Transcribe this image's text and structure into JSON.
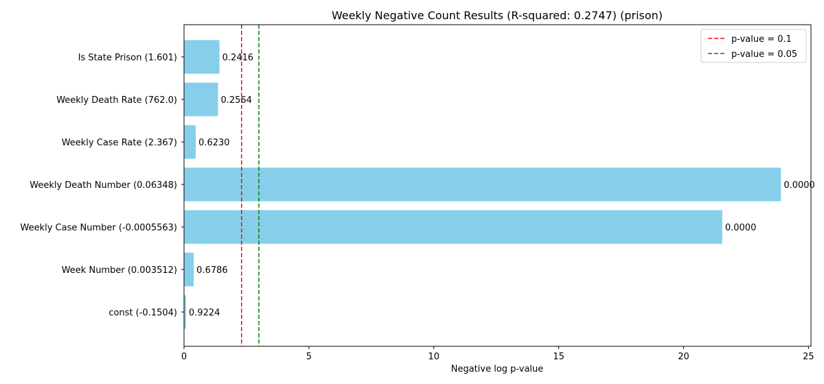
{
  "chart_data": {
    "type": "bar",
    "orientation": "horizontal",
    "title": "Weekly Negative Count Results (R-squared: 0.2747) (prison)",
    "xlabel": "Negative log p-value",
    "ylabel": "",
    "xlim": [
      0,
      25.1
    ],
    "xticks": [
      0,
      5,
      10,
      15,
      20,
      25
    ],
    "grid": false,
    "legend_position": "top-right",
    "bar_color": "#87ceeb",
    "categories": [
      "Is State Prison (1.601)",
      "Weekly Death Rate (762.0)",
      "Weekly Case Rate (2.367)",
      "Weekly Death Number (0.06348)",
      "Weekly Case Number (-0.0005563)",
      "Week Number (0.003512)",
      "const (-0.1504)"
    ],
    "values": [
      1.42,
      1.36,
      0.47,
      23.9,
      21.55,
      0.39,
      0.08
    ],
    "bar_labels": [
      "0.2416",
      "0.2564",
      "0.6230",
      "0.0000",
      "0.0000",
      "0.6786",
      "0.9224"
    ],
    "reference_lines": [
      {
        "label": "p-value = 0.1",
        "x": 2.302585,
        "color": "#ff0000",
        "style": "dashed"
      },
      {
        "label": "p-value = 0.05",
        "x": 2.995732,
        "color": "#008000",
        "style": "dashed"
      }
    ]
  }
}
